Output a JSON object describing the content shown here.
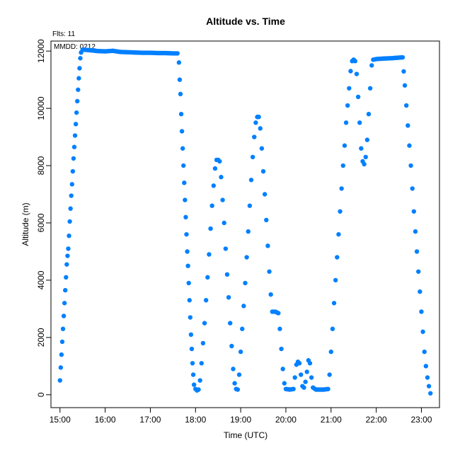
{
  "chart_data": {
    "type": "scatter",
    "title": "Altitude  vs. Time",
    "xlabel": "Time (UTC)",
    "ylabel": "Altitude (m)",
    "annotations": [
      "Flts: 11",
      "MMDD: 0212"
    ],
    "x_ticks": [
      "15:00",
      "16:00",
      "17:00",
      "18:00",
      "19:00",
      "20:00",
      "21:00",
      "22:00",
      "23:00"
    ],
    "y_ticks": [
      "0",
      "2000",
      "4000",
      "6000",
      "8000",
      "10000",
      "12000"
    ],
    "xlim": [
      "14:48",
      "23:24"
    ],
    "ylim": [
      -450,
      12350
    ],
    "grid": false,
    "color": "#0080ff",
    "series": [
      {
        "points": [
          [
            "15:00",
            500
          ],
          [
            "15:01",
            950
          ],
          [
            "15:02",
            1400
          ],
          [
            "15:03",
            1850
          ],
          [
            "15:04",
            2300
          ],
          [
            "15:05",
            2750
          ],
          [
            "15:06",
            3200
          ],
          [
            "15:07",
            3650
          ],
          [
            "15:08",
            4100
          ],
          [
            "15:09",
            4550
          ],
          [
            "15:10",
            4850
          ],
          [
            "15:11",
            5100
          ],
          [
            "15:12",
            5550
          ],
          [
            "15:13",
            6050
          ],
          [
            "15:14",
            6500
          ],
          [
            "15:15",
            6950
          ],
          [
            "15:16",
            7350
          ],
          [
            "15:17",
            7800
          ],
          [
            "15:18",
            8250
          ],
          [
            "15:19",
            8650
          ],
          [
            "15:20",
            9050
          ],
          [
            "15:21",
            9450
          ],
          [
            "15:22",
            9850
          ],
          [
            "15:23",
            10250
          ],
          [
            "15:24",
            10650
          ],
          [
            "15:25",
            11050
          ],
          [
            "15:26",
            11400
          ],
          [
            "15:27",
            11750
          ],
          [
            "15:28",
            11950
          ],
          [
            "15:30",
            12050
          ],
          [
            "15:40",
            12030
          ],
          [
            "15:50",
            12000
          ],
          [
            "16:00",
            11990
          ],
          [
            "16:10",
            12010
          ],
          [
            "16:20",
            11970
          ],
          [
            "16:30",
            11960
          ],
          [
            "16:40",
            11950
          ],
          [
            "16:50",
            11940
          ],
          [
            "17:00",
            11940
          ],
          [
            "17:10",
            11930
          ],
          [
            "17:20",
            11930
          ],
          [
            "17:30",
            11920
          ],
          [
            "17:36",
            11920
          ],
          [
            "17:38",
            11600
          ],
          [
            "17:39",
            11000
          ],
          [
            "17:40",
            10500
          ],
          [
            "17:41",
            9800
          ],
          [
            "17:42",
            9200
          ],
          [
            "17:43",
            8600
          ],
          [
            "17:44",
            8000
          ],
          [
            "17:45",
            7400
          ],
          [
            "17:46",
            6800
          ],
          [
            "17:47",
            6200
          ],
          [
            "17:48",
            5600
          ],
          [
            "17:49",
            5000
          ],
          [
            "17:50",
            4500
          ],
          [
            "17:51",
            3900
          ],
          [
            "17:52",
            3300
          ],
          [
            "17:53",
            2700
          ],
          [
            "17:54",
            2100
          ],
          [
            "17:55",
            1600
          ],
          [
            "17:56",
            1100
          ],
          [
            "17:57",
            700
          ],
          [
            "17:58",
            350
          ],
          [
            "18:00",
            200
          ],
          [
            "18:02",
            150
          ],
          [
            "18:04",
            180
          ],
          [
            "18:06",
            500
          ],
          [
            "18:08",
            1100
          ],
          [
            "18:10",
            1800
          ],
          [
            "18:12",
            2500
          ],
          [
            "18:14",
            3300
          ],
          [
            "18:16",
            4100
          ],
          [
            "18:18",
            4900
          ],
          [
            "18:20",
            5800
          ],
          [
            "18:22",
            6600
          ],
          [
            "18:24",
            7300
          ],
          [
            "18:26",
            7900
          ],
          [
            "18:28",
            8200
          ],
          [
            "18:30",
            8200
          ],
          [
            "18:32",
            8150
          ],
          [
            "18:34",
            7600
          ],
          [
            "18:36",
            6800
          ],
          [
            "18:38",
            6000
          ],
          [
            "18:40",
            5100
          ],
          [
            "18:42",
            4200
          ],
          [
            "18:44",
            3400
          ],
          [
            "18:46",
            2500
          ],
          [
            "18:48",
            1700
          ],
          [
            "18:50",
            900
          ],
          [
            "18:52",
            400
          ],
          [
            "18:54",
            200
          ],
          [
            "18:56",
            180
          ],
          [
            "18:58",
            700
          ],
          [
            "19:00",
            1500
          ],
          [
            "19:02",
            2300
          ],
          [
            "19:04",
            3100
          ],
          [
            "19:06",
            3900
          ],
          [
            "19:08",
            4800
          ],
          [
            "19:10",
            5700
          ],
          [
            "19:12",
            6600
          ],
          [
            "19:14",
            7500
          ],
          [
            "19:16",
            8300
          ],
          [
            "19:18",
            9000
          ],
          [
            "19:20",
            9500
          ],
          [
            "19:22",
            9700
          ],
          [
            "19:24",
            9700
          ],
          [
            "19:26",
            9300
          ],
          [
            "19:28",
            8600
          ],
          [
            "19:30",
            7800
          ],
          [
            "19:32",
            7000
          ],
          [
            "19:34",
            6100
          ],
          [
            "19:36",
            5200
          ],
          [
            "19:38",
            4300
          ],
          [
            "19:40",
            3500
          ],
          [
            "19:42",
            2900
          ],
          [
            "19:46",
            2900
          ],
          [
            "19:50",
            2850
          ],
          [
            "19:52",
            2300
          ],
          [
            "19:54",
            1600
          ],
          [
            "19:56",
            900
          ],
          [
            "19:58",
            400
          ],
          [
            "20:00",
            200
          ],
          [
            "20:05",
            180
          ],
          [
            "20:10",
            200
          ],
          [
            "20:12",
            600
          ],
          [
            "20:14",
            1050
          ],
          [
            "20:16",
            1150
          ],
          [
            "20:18",
            1100
          ],
          [
            "20:20",
            700
          ],
          [
            "20:22",
            300
          ],
          [
            "20:24",
            250
          ],
          [
            "20:26",
            450
          ],
          [
            "20:28",
            800
          ],
          [
            "20:30",
            1200
          ],
          [
            "20:32",
            1100
          ],
          [
            "20:34",
            600
          ],
          [
            "20:36",
            250
          ],
          [
            "20:40",
            180
          ],
          [
            "20:50",
            180
          ],
          [
            "20:56",
            200
          ],
          [
            "20:58",
            700
          ],
          [
            "21:00",
            1500
          ],
          [
            "21:02",
            2300
          ],
          [
            "21:04",
            3200
          ],
          [
            "21:06",
            4000
          ],
          [
            "21:08",
            4800
          ],
          [
            "21:10",
            5600
          ],
          [
            "21:12",
            6400
          ],
          [
            "21:14",
            7200
          ],
          [
            "21:16",
            8000
          ],
          [
            "21:18",
            8700
          ],
          [
            "21:20",
            9500
          ],
          [
            "21:22",
            10100
          ],
          [
            "21:24",
            10700
          ],
          [
            "21:26",
            11300
          ],
          [
            "21:28",
            11650
          ],
          [
            "21:30",
            11700
          ],
          [
            "21:32",
            11650
          ],
          [
            "21:34",
            11200
          ],
          [
            "21:36",
            10400
          ],
          [
            "21:38",
            9500
          ],
          [
            "21:40",
            8600
          ],
          [
            "21:42",
            8150
          ],
          [
            "21:44",
            8050
          ],
          [
            "21:46",
            8300
          ],
          [
            "21:48",
            8900
          ],
          [
            "21:50",
            9800
          ],
          [
            "21:52",
            10700
          ],
          [
            "21:54",
            11500
          ],
          [
            "21:56",
            11700
          ],
          [
            "22:00",
            11720
          ],
          [
            "22:10",
            11740
          ],
          [
            "22:20",
            11750
          ],
          [
            "22:30",
            11770
          ],
          [
            "22:35",
            11780
          ],
          [
            "22:38",
            10800
          ],
          [
            "22:40",
            10100
          ],
          [
            "22:42",
            9400
          ],
          [
            "22:44",
            8700
          ],
          [
            "22:46",
            8000
          ],
          [
            "22:48",
            7200
          ],
          [
            "22:50",
            6400
          ],
          [
            "22:52",
            5700
          ],
          [
            "22:54",
            5000
          ],
          [
            "22:56",
            4300
          ],
          [
            "22:58",
            3600
          ],
          [
            "23:00",
            2900
          ],
          [
            "23:02",
            2200
          ],
          [
            "23:04",
            1500
          ],
          [
            "23:06",
            1000
          ],
          [
            "23:08",
            600
          ],
          [
            "23:10",
            300
          ],
          [
            "23:12",
            50
          ]
        ]
      }
    ]
  }
}
